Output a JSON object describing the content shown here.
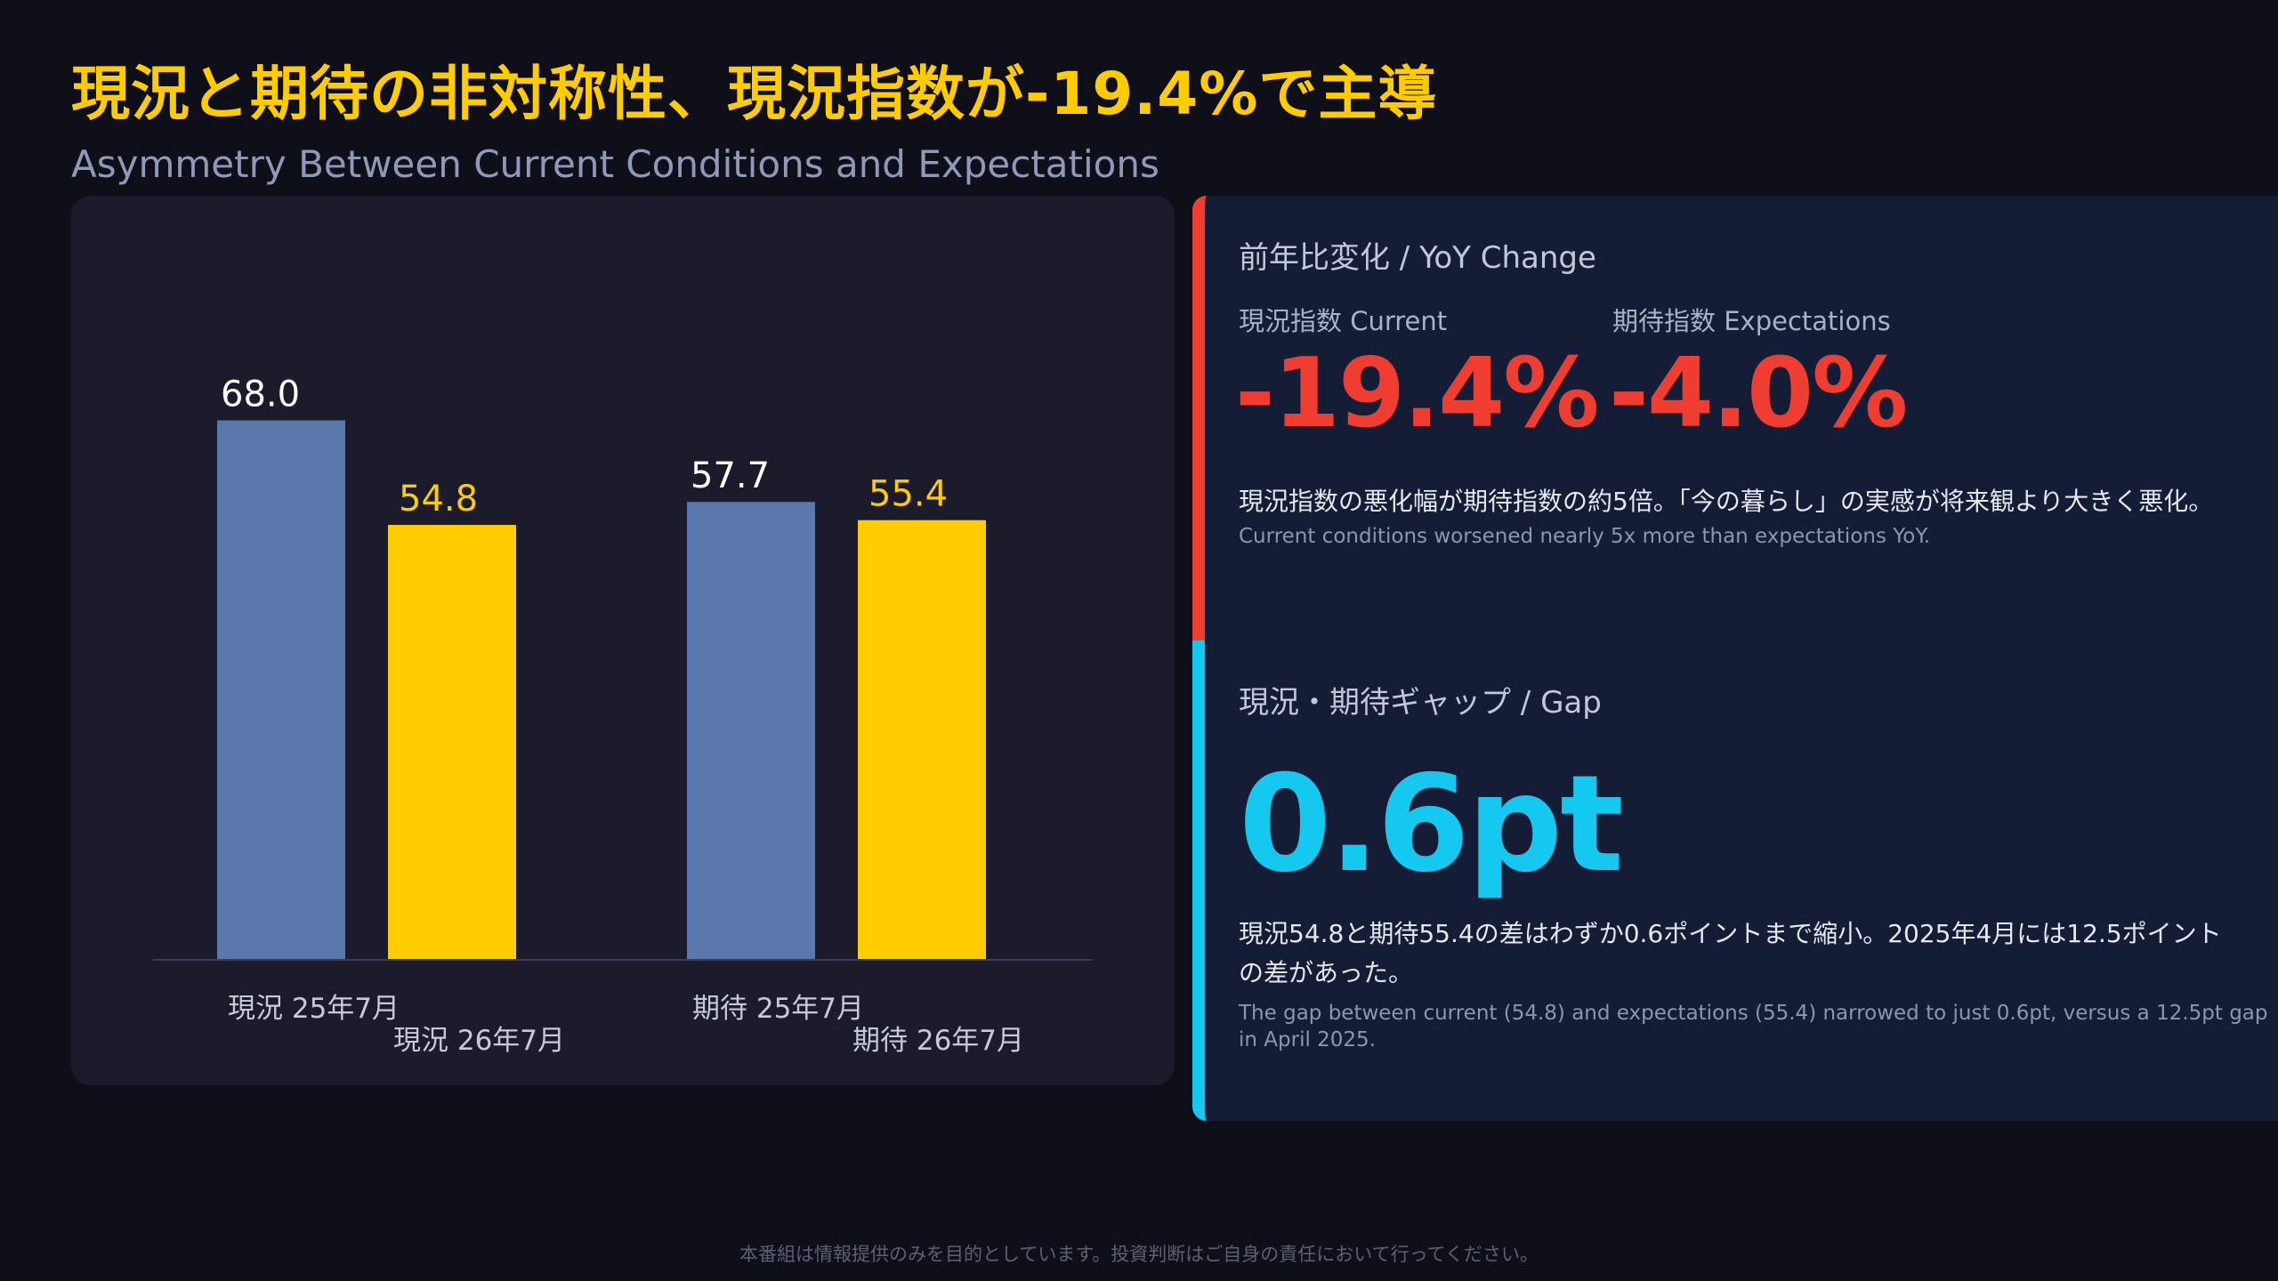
{
  "title": "現況と期待の非対称性、現況指数が-19.4%で主導",
  "subtitle": "Asymmetry Between Current Conditions and Expectations",
  "chart_data": {
    "type": "bar",
    "categories": [
      "現況 25年7月",
      "現況 26年7月",
      "期待 25年7月",
      "期待 26年7月"
    ],
    "values": [
      68.0,
      54.8,
      57.7,
      55.4
    ],
    "value_labels": [
      "68.0",
      "54.8",
      "57.7",
      "55.4"
    ],
    "colors": [
      "#5a78ab",
      "#ffcc00",
      "#5a78ab",
      "#ffcc00"
    ],
    "label_colors": [
      "#ffffff",
      "#ffcc00",
      "#ffffff",
      "#ffcc00"
    ],
    "ylim": [
      0,
      75
    ],
    "grid": false,
    "title": "",
    "xlabel": "",
    "ylabel": ""
  },
  "yoy": {
    "heading": "前年比変化 / YoY Change",
    "current_label": "現況指数 Current",
    "current_value": "-19.4%",
    "expectations_label": "期待指数 Expectations",
    "expectations_value": "-4.0%",
    "desc_jp": "現況指数の悪化幅が期待指数の約5倍。「今の暮らし」の実感が将来観より大きく悪化。",
    "desc_en": "Current conditions worsened nearly 5x more than expectations YoY.",
    "accent_color": "#ef3d31"
  },
  "gap": {
    "heading": "現況・期待ギャップ / Gap",
    "value": "0.6pt",
    "desc_jp_line1": "現況54.8と期待55.4の差はわずか0.6ポイントまで縮小。2025年4月には12.5ポイント",
    "desc_jp_line2": "の差があった。",
    "desc_en_line1": "The gap between current (54.8) and expectations (55.4) narrowed to just 0.6pt, versus a 12.5pt gap",
    "desc_en_line2": "in April 2025.",
    "accent_color": "#14c8f0"
  },
  "disclaimer": "本番組は情報提供のみを目的としています。投資判断はご自身の責任において行ってください。"
}
